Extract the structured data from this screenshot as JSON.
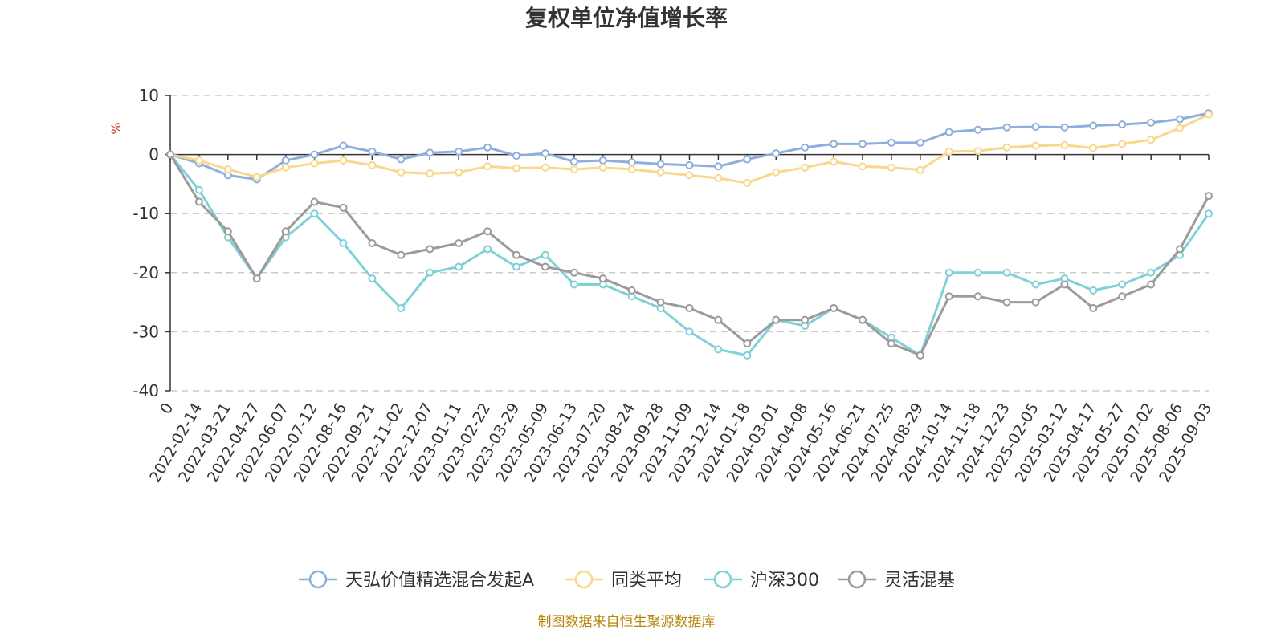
{
  "chart_data": {
    "type": "line",
    "title": "复权单位净值增长率",
    "ylabel": "%",
    "ylim": [
      -40,
      10
    ],
    "yticks": [
      10,
      0,
      -10,
      -20,
      -30,
      -40
    ],
    "x_labels": [
      "0",
      "2022-02-14",
      "2022-03-21",
      "2022-04-27",
      "2022-06-07",
      "2022-07-12",
      "2022-08-16",
      "2022-09-21",
      "2022-11-02",
      "2022-12-07",
      "2023-01-11",
      "2023-02-22",
      "2023-03-29",
      "2023-05-09",
      "2023-06-13",
      "2023-07-20",
      "2023-08-24",
      "2023-09-28",
      "2023-11-09",
      "2023-12-14",
      "2024-01-18",
      "2024-03-01",
      "2024-04-08",
      "2024-05-16",
      "2024-06-21",
      "2024-07-25",
      "2024-08-29",
      "2024-10-14",
      "2024-11-18",
      "2024-12-23",
      "2025-02-05",
      "2025-03-12",
      "2025-04-17",
      "2025-05-27",
      "2025-07-02",
      "2025-08-06",
      "2025-09-03"
    ],
    "grid": true,
    "legend_position": "bottom",
    "source": "制图数据来自恒生聚源数据库",
    "series": [
      {
        "name": "天弘价值精选混合发起A",
        "color": "#8eaedb",
        "values": [
          0,
          -1.5,
          -3.5,
          -4.2,
          -1,
          0,
          1.5,
          0.5,
          -0.8,
          0.3,
          0.5,
          1.2,
          -0.2,
          0.2,
          -1.2,
          -1,
          -1.3,
          -1.6,
          -1.8,
          -2,
          -0.8,
          0.2,
          1.2,
          1.8,
          1.8,
          2,
          2,
          3.8,
          4.2,
          4.6,
          4.7,
          4.6,
          4.9,
          5.1,
          5.4,
          6,
          7
        ]
      },
      {
        "name": "同类平均",
        "color": "#f9d78c",
        "values": [
          0,
          -1,
          -2.5,
          -3.8,
          -2.2,
          -1.5,
          -1,
          -1.8,
          -3,
          -3.2,
          -3,
          -2,
          -2.3,
          -2.2,
          -2.5,
          -2.2,
          -2.5,
          -3,
          -3.5,
          -4,
          -4.8,
          -3,
          -2.2,
          -1.2,
          -2,
          -2.2,
          -2.6,
          0.5,
          0.6,
          1.2,
          1.5,
          1.6,
          1.1,
          1.8,
          2.5,
          4.5,
          6.8
        ]
      },
      {
        "name": "沪深300",
        "color": "#7fd1d8",
        "values": [
          0,
          -6,
          -14,
          -21,
          -14,
          -10,
          -15,
          -21,
          -26,
          -20,
          -19,
          -16,
          -19,
          -17,
          -22,
          -22,
          -24,
          -26,
          -30,
          -33,
          -34,
          -28,
          -29,
          -26,
          -28,
          -31,
          -34,
          -20,
          -20,
          -20,
          -22,
          -21,
          -23,
          -22,
          -20,
          -17,
          -10
        ]
      },
      {
        "name": "灵活混基",
        "color": "#9b9b9b",
        "values": [
          0,
          -8,
          -13,
          -21,
          -13,
          -8,
          -9,
          -15,
          -17,
          -16,
          -15,
          -13,
          -17,
          -19,
          -20,
          -21,
          -23,
          -25,
          -26,
          -28,
          -32,
          -28,
          -28,
          -26,
          -28,
          -32,
          -34,
          -24,
          -24,
          -25,
          -25,
          -22,
          -26,
          -24,
          -22,
          -16,
          -7
        ]
      }
    ]
  }
}
